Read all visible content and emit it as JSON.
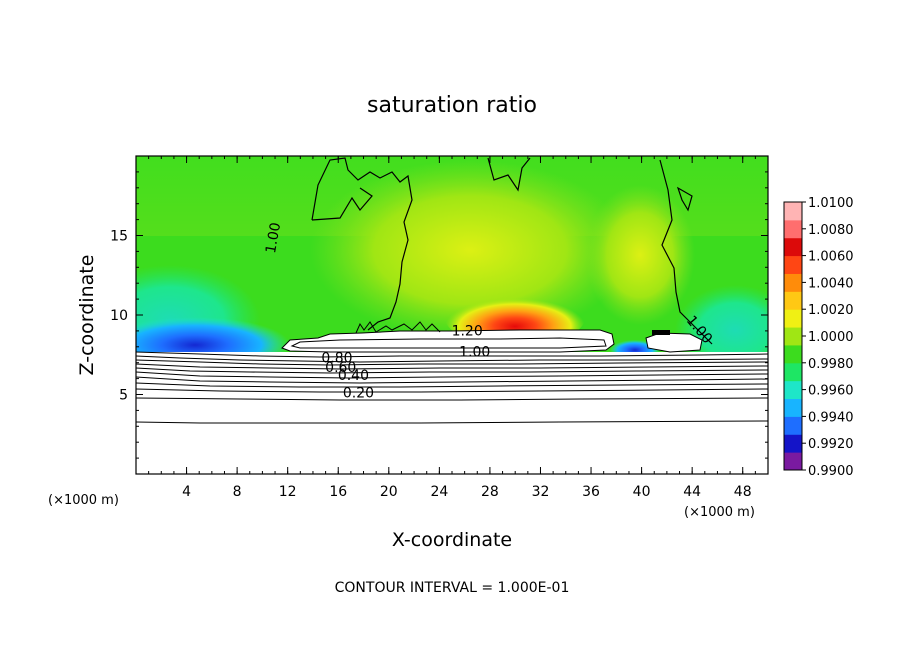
{
  "chart_data": {
    "type": "heatmap",
    "title": "saturation ratio",
    "xlabel": "X-coordinate",
    "ylabel": "Z-coordinate",
    "x_unit_left": "(×1000 m)",
    "x_unit_right": "(×1000 m)",
    "xlim": [
      0,
      50
    ],
    "ylim": [
      0,
      20
    ],
    "x_ticks": [
      "4",
      "8",
      "12",
      "16",
      "20",
      "24",
      "28",
      "32",
      "36",
      "40",
      "44",
      "48"
    ],
    "y_ticks": [
      "5",
      "10",
      "15"
    ],
    "colorbar": {
      "range": [
        0.99,
        1.01
      ],
      "tick_labels": [
        "1.0100",
        "1.0080",
        "1.0060",
        "1.0040",
        "1.0020",
        "1.0000",
        "0.9980",
        "0.9960",
        "0.9940",
        "0.9920",
        "0.9900"
      ],
      "colors": [
        "#7a1aa0",
        "#1414c8",
        "#1e6eff",
        "#18b4ff",
        "#1ee6c8",
        "#1ee664",
        "#3cdc1e",
        "#a0e614",
        "#f0f014",
        "#ffc814",
        "#ff8c0a",
        "#ff4614",
        "#dc0a0a",
        "#ff6e6e",
        "#ffb4b4"
      ]
    },
    "contour_labels": [
      {
        "text": "1.00",
        "x": 11.2,
        "y": 14.8
      },
      {
        "text": "1.00",
        "x": 44.3,
        "y": 8.9
      },
      {
        "text": "1.20",
        "x": 26.2,
        "y": 8.7
      },
      {
        "text": "1.00",
        "x": 26.8,
        "y": 7.4
      },
      {
        "text": "0.80",
        "x": 15.9,
        "y": 7.0
      },
      {
        "text": "0.60",
        "x": 16.2,
        "y": 6.4
      },
      {
        "text": "0.40",
        "x": 17.2,
        "y": 5.9
      },
      {
        "text": "0.20",
        "x": 17.6,
        "y": 4.8
      }
    ],
    "contour_interval_text": "CONTOUR INTERVAL = 1.000E-01"
  }
}
